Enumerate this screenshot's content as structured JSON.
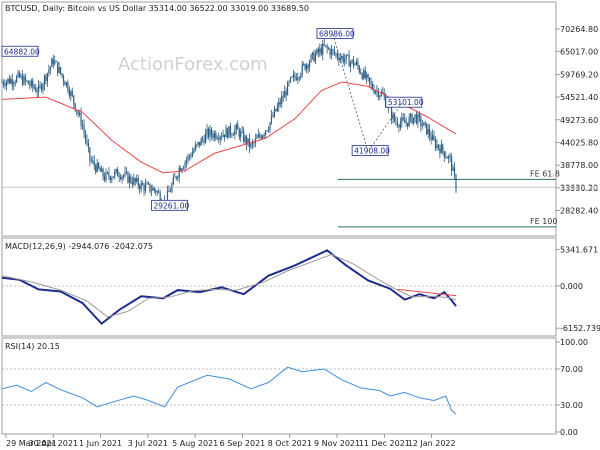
{
  "chart_data": [
    {
      "type": "candlestick",
      "title": "BTCUSD, Daily:  Bitcoin vs US Dollar  35314.00 36522.00 33019.00 33689.50",
      "watermark": "ActionForex.com",
      "y_ticks": [
        "70264.80",
        "65017.00",
        "59769.20",
        "54521.40",
        "49273.60",
        "44025.80",
        "38778.00",
        "33530.20",
        "28282.40"
      ],
      "price_labels": [
        {
          "text": "64882.00",
          "date": "2021-03-29",
          "price": 64882
        },
        {
          "text": "68986.00",
          "date": "2021-11-10",
          "price": 68986
        },
        {
          "text": "29261.00",
          "date": "2021-07-20",
          "price": 29261
        },
        {
          "text": "53101.00",
          "date": "2021-12-27",
          "price": 53101
        },
        {
          "text": "41908.00",
          "date": "2021-12-04",
          "price": 41908
        }
      ],
      "current_price": "33689.50",
      "fibonacci": [
        {
          "label": "FE 61.8",
          "price": 35500
        },
        {
          "label": "FE 100",
          "price": 24500
        }
      ],
      "series": [
        {
          "kind": "ohlc",
          "color": "#2b5d84",
          "x": "2021-03-29 .. 2022-01-21 daily",
          "close_path": [
            [
              0,
              58000
            ],
            [
              12,
              59000
            ],
            [
              25,
              56000
            ],
            [
              35,
              63000
            ],
            [
              45,
              57000
            ],
            [
              55,
              48000
            ],
            [
              60,
              40000
            ],
            [
              70,
              36000
            ],
            [
              80,
              37000
            ],
            [
              95,
              34000
            ],
            [
              105,
              33000
            ],
            [
              111,
              30000
            ],
            [
              121,
              38000
            ],
            [
              140,
              46000
            ],
            [
              150,
              46000
            ],
            [
              160,
              47000
            ],
            [
              170,
              43000
            ],
            [
              182,
              48000
            ],
            [
              197,
              58000
            ],
            [
              210,
              63000
            ],
            [
              220,
              66000
            ],
            [
              230,
              64000
            ],
            [
              242,
              62000
            ],
            [
              252,
              57000
            ],
            [
              260,
              55000
            ],
            [
              268,
              49000
            ],
            [
              275,
              48500
            ],
            [
              282,
              50000
            ],
            [
              290,
              47000
            ],
            [
              295,
              44000
            ],
            [
              300,
              42500
            ],
            [
              306,
              40000
            ],
            [
              310,
              34000
            ]
          ]
        },
        {
          "kind": "line",
          "name": "MA",
          "color": "#e8474b",
          "points": [
            [
              0,
              54000
            ],
            [
              30,
              54500
            ],
            [
              55,
              51000
            ],
            [
              75,
              44500
            ],
            [
              95,
              39500
            ],
            [
              110,
              37000
            ],
            [
              125,
              37500
            ],
            [
              145,
              41500
            ],
            [
              165,
              43500
            ],
            [
              180,
              45000
            ],
            [
              200,
              49500
            ],
            [
              218,
              56000
            ],
            [
              232,
              58000
            ],
            [
              250,
              57000
            ],
            [
              270,
              53500
            ],
            [
              290,
              50000
            ],
            [
              310,
              46000
            ]
          ]
        }
      ]
    },
    {
      "type": "line",
      "title": "MACD(12,26,9) -2944.076 -2042.075",
      "y_ticks": [
        "5341.671",
        "0.000",
        "-6152.739"
      ],
      "series": [
        {
          "name": "MACD",
          "color": "#1f2d8f",
          "points": [
            [
              0,
              1200
            ],
            [
              12,
              900
            ],
            [
              25,
              -500
            ],
            [
              40,
              -800
            ],
            [
              55,
              -2500
            ],
            [
              68,
              -5500
            ],
            [
              80,
              -3500
            ],
            [
              95,
              -1500
            ],
            [
              110,
              -1800
            ],
            [
              120,
              -600
            ],
            [
              135,
              -900
            ],
            [
              150,
              -200
            ],
            [
              165,
              -1200
            ],
            [
              182,
              1500
            ],
            [
              200,
              3000
            ],
            [
              210,
              4000
            ],
            [
              222,
              5200
            ],
            [
              235,
              3000
            ],
            [
              250,
              800
            ],
            [
              265,
              -400
            ],
            [
              275,
              -2000
            ],
            [
              285,
              -1200
            ],
            [
              295,
              -1800
            ],
            [
              302,
              -900
            ],
            [
              307,
              -2100
            ],
            [
              310,
              -2944
            ]
          ]
        },
        {
          "name": "Signal",
          "color": "#9a9a9a",
          "points": [
            [
              0,
              1500
            ],
            [
              20,
              600
            ],
            [
              40,
              -600
            ],
            [
              58,
              -2200
            ],
            [
              72,
              -4500
            ],
            [
              86,
              -3700
            ],
            [
              100,
              -1800
            ],
            [
              115,
              -1600
            ],
            [
              130,
              -700
            ],
            [
              145,
              -500
            ],
            [
              160,
              -600
            ],
            [
              178,
              500
            ],
            [
              195,
              2200
            ],
            [
              210,
              3400
            ],
            [
              225,
              4600
            ],
            [
              240,
              3200
            ],
            [
              255,
              1200
            ],
            [
              268,
              -400
            ],
            [
              280,
              -1600
            ],
            [
              292,
              -1500
            ],
            [
              305,
              -1700
            ],
            [
              310,
              -2042
            ]
          ]
        },
        {
          "name": "Trend",
          "color": "#e8474b",
          "points": [
            [
              270,
              -500
            ],
            [
              310,
              -1400
            ]
          ]
        }
      ]
    },
    {
      "type": "line",
      "title": "RSI(14) 20.15",
      "y_ticks": [
        "100.00",
        "70.00",
        "30.00",
        "0.00"
      ],
      "ylim": [
        0,
        100
      ],
      "series": [
        {
          "name": "RSI",
          "color": "#3c8fdc",
          "points": [
            [
              0,
              48
            ],
            [
              10,
              52
            ],
            [
              20,
              45
            ],
            [
              30,
              55
            ],
            [
              40,
              47
            ],
            [
              55,
              38
            ],
            [
              65,
              28
            ],
            [
              75,
              33
            ],
            [
              90,
              40
            ],
            [
              100,
              35
            ],
            [
              111,
              28
            ],
            [
              120,
              50
            ],
            [
              140,
              63
            ],
            [
              155,
              59
            ],
            [
              170,
              48
            ],
            [
              182,
              55
            ],
            [
              195,
              72
            ],
            [
              205,
              67
            ],
            [
              220,
              70
            ],
            [
              232,
              58
            ],
            [
              245,
              49
            ],
            [
              258,
              46
            ],
            [
              265,
              40
            ],
            [
              275,
              44
            ],
            [
              285,
              38
            ],
            [
              295,
              35
            ],
            [
              303,
              40
            ],
            [
              307,
              24
            ],
            [
              310,
              20
            ]
          ]
        }
      ]
    }
  ],
  "x_ticks": [
    "29 Mar 2021",
    "30 Apr 2021",
    "1 Jun 2021",
    "3 Jul 2021",
    "5 Aug 2021",
    "6 Sep 2021",
    "8 Oct 2021",
    "9 Nov 2021",
    "11 Dec 2021",
    "12 Jan 2022"
  ]
}
